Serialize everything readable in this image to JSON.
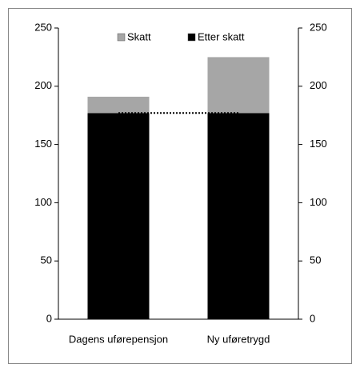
{
  "chart_data": {
    "type": "stacked_bar",
    "categories": [
      "Dagens uførepensjon",
      "Ny uføretrygd"
    ],
    "series": [
      {
        "name": "Etter skatt",
        "color": "#000000",
        "values": [
          177,
          177
        ]
      },
      {
        "name": "Skatt",
        "color": "#a6a6a6",
        "values": [
          14,
          48
        ]
      }
    ],
    "reference_line": 177,
    "ylim": [
      0,
      250
    ],
    "yticks": [
      0,
      50,
      100,
      150,
      200,
      250
    ],
    "y2lim": [
      0,
      250
    ],
    "y2ticks": [
      0,
      50,
      100,
      150,
      200,
      250
    ],
    "legend": "top",
    "grid": false
  }
}
